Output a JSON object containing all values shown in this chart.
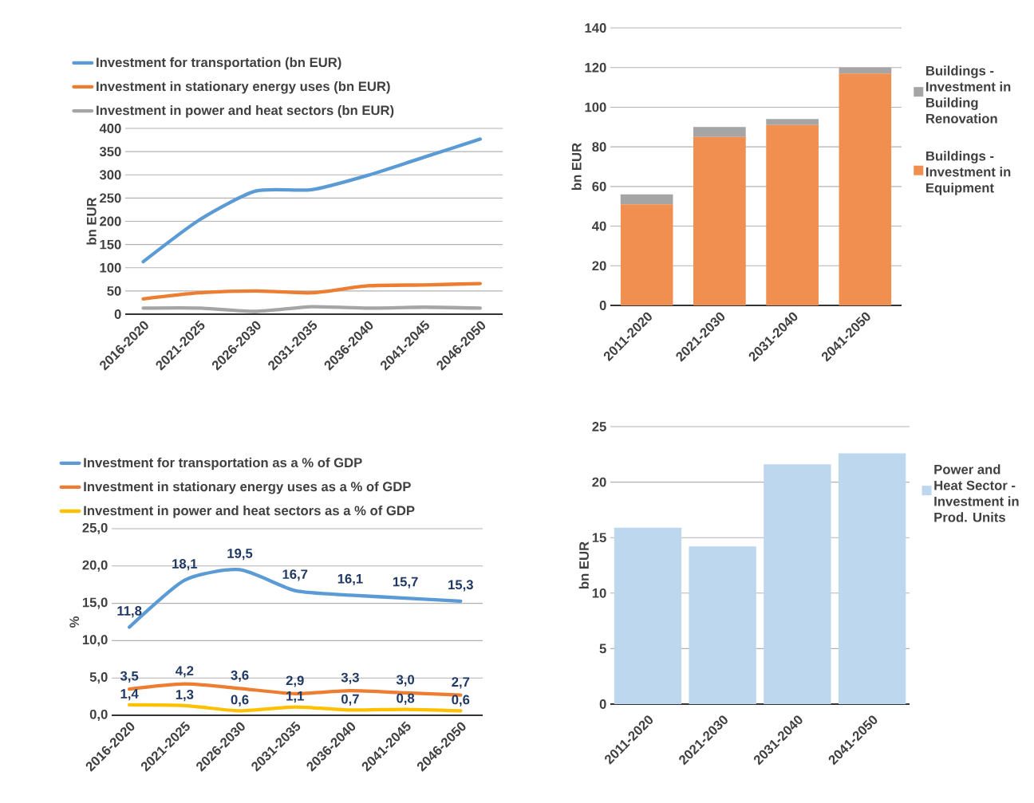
{
  "chart_data": [
    {
      "type": "line",
      "categories": [
        "2016-2020",
        "2021-2025",
        "2026-2030",
        "2031-2035",
        "2036-2040",
        "2041-2045",
        "2046-2050"
      ],
      "ylabel": "bn EUR",
      "ylim": [
        0,
        400
      ],
      "yticks": [
        0,
        50,
        100,
        150,
        200,
        250,
        300,
        350,
        400
      ],
      "grid": "y",
      "legend": "top",
      "series": [
        {
          "name": "Investment for transportation (bn EUR)",
          "color": "#5b9bd5",
          "values": [
            113,
            203,
            265,
            268,
            299,
            338,
            377
          ]
        },
        {
          "name": "Investment in stationary energy uses (bn EUR)",
          "color": "#ed7d31",
          "values": [
            33,
            46,
            50,
            46,
            61,
            63,
            66
          ]
        },
        {
          "name": "Investment in power and heat sectors (bn EUR)",
          "color": "#a5a5a5",
          "values": [
            13,
            13,
            6,
            16,
            13,
            15,
            13
          ]
        }
      ]
    },
    {
      "type": "bar",
      "stacked": true,
      "categories": [
        "2011-2020",
        "2021-2030",
        "2031-2040",
        "2041-2050"
      ],
      "ylabel": "bn EUR",
      "ylim": [
        0,
        140
      ],
      "yticks": [
        0,
        20,
        40,
        60,
        80,
        100,
        120,
        140
      ],
      "grid": "y",
      "legend": "right",
      "series": [
        {
          "name": "Buildings - Investment in Equipment",
          "color": "#f08f50",
          "values": [
            51,
            85,
            91,
            117
          ]
        },
        {
          "name": "Buildings - Investment in Building Renovation",
          "color": "#a5a5a5",
          "values": [
            5,
            5,
            3,
            3
          ]
        }
      ]
    },
    {
      "type": "line",
      "categories": [
        "2016-2020",
        "2021-2025",
        "2026-2030",
        "2031-2035",
        "2036-2040",
        "2041-2045",
        "2046-2050"
      ],
      "ylabel": "%",
      "ylim": [
        0,
        25
      ],
      "yticks": [
        {
          "value": 0,
          "label": "0,0"
        },
        {
          "value": 5,
          "label": "5,0"
        },
        {
          "value": 10,
          "label": "10,0"
        },
        {
          "value": 15,
          "label": "15,0"
        },
        {
          "value": 20,
          "label": "20,0"
        },
        {
          "value": 25,
          "label": "25,0"
        }
      ],
      "grid": "y",
      "legend": "top",
      "series": [
        {
          "name": "Investment for transportation as a % of GDP",
          "color": "#5b9bd5",
          "values": [
            11.8,
            18.1,
            19.5,
            16.7,
            16.1,
            15.7,
            15.3
          ],
          "value_labels": [
            "11,8",
            "18,1",
            "19,5",
            "16,7",
            "16,1",
            "15,7",
            "15,3"
          ]
        },
        {
          "name": "Investment in stationary energy uses as a % of GDP",
          "color": "#ed7d31",
          "values": [
            3.5,
            4.2,
            3.6,
            2.9,
            3.3,
            3.0,
            2.7
          ],
          "value_labels": [
            "3,5",
            "4,2",
            "3,6",
            "2,9",
            "3,3",
            "3,0",
            "2,7"
          ]
        },
        {
          "name": "Investment in power and heat sectors as a % of GDP",
          "color": "#ffc000",
          "values": [
            1.4,
            1.3,
            0.6,
            1.1,
            0.7,
            0.8,
            0.6
          ],
          "value_labels": [
            "1,4",
            "1,3",
            "0,6",
            "1,1",
            "0,7",
            "0,8",
            "0,6"
          ]
        }
      ]
    },
    {
      "type": "bar",
      "categories": [
        "2011-2020",
        "2021-2030",
        "2031-2040",
        "2041-2050"
      ],
      "ylabel": "bn EUR",
      "ylim": [
        0,
        25
      ],
      "yticks": [
        0,
        5,
        10,
        15,
        20,
        25
      ],
      "grid": "y",
      "legend": "right",
      "series": [
        {
          "name": "Power and Heat Sector - Investment in Prod. Units",
          "color": "#bdd7ee",
          "values": [
            15.9,
            14.2,
            21.6,
            22.6
          ]
        }
      ]
    }
  ]
}
